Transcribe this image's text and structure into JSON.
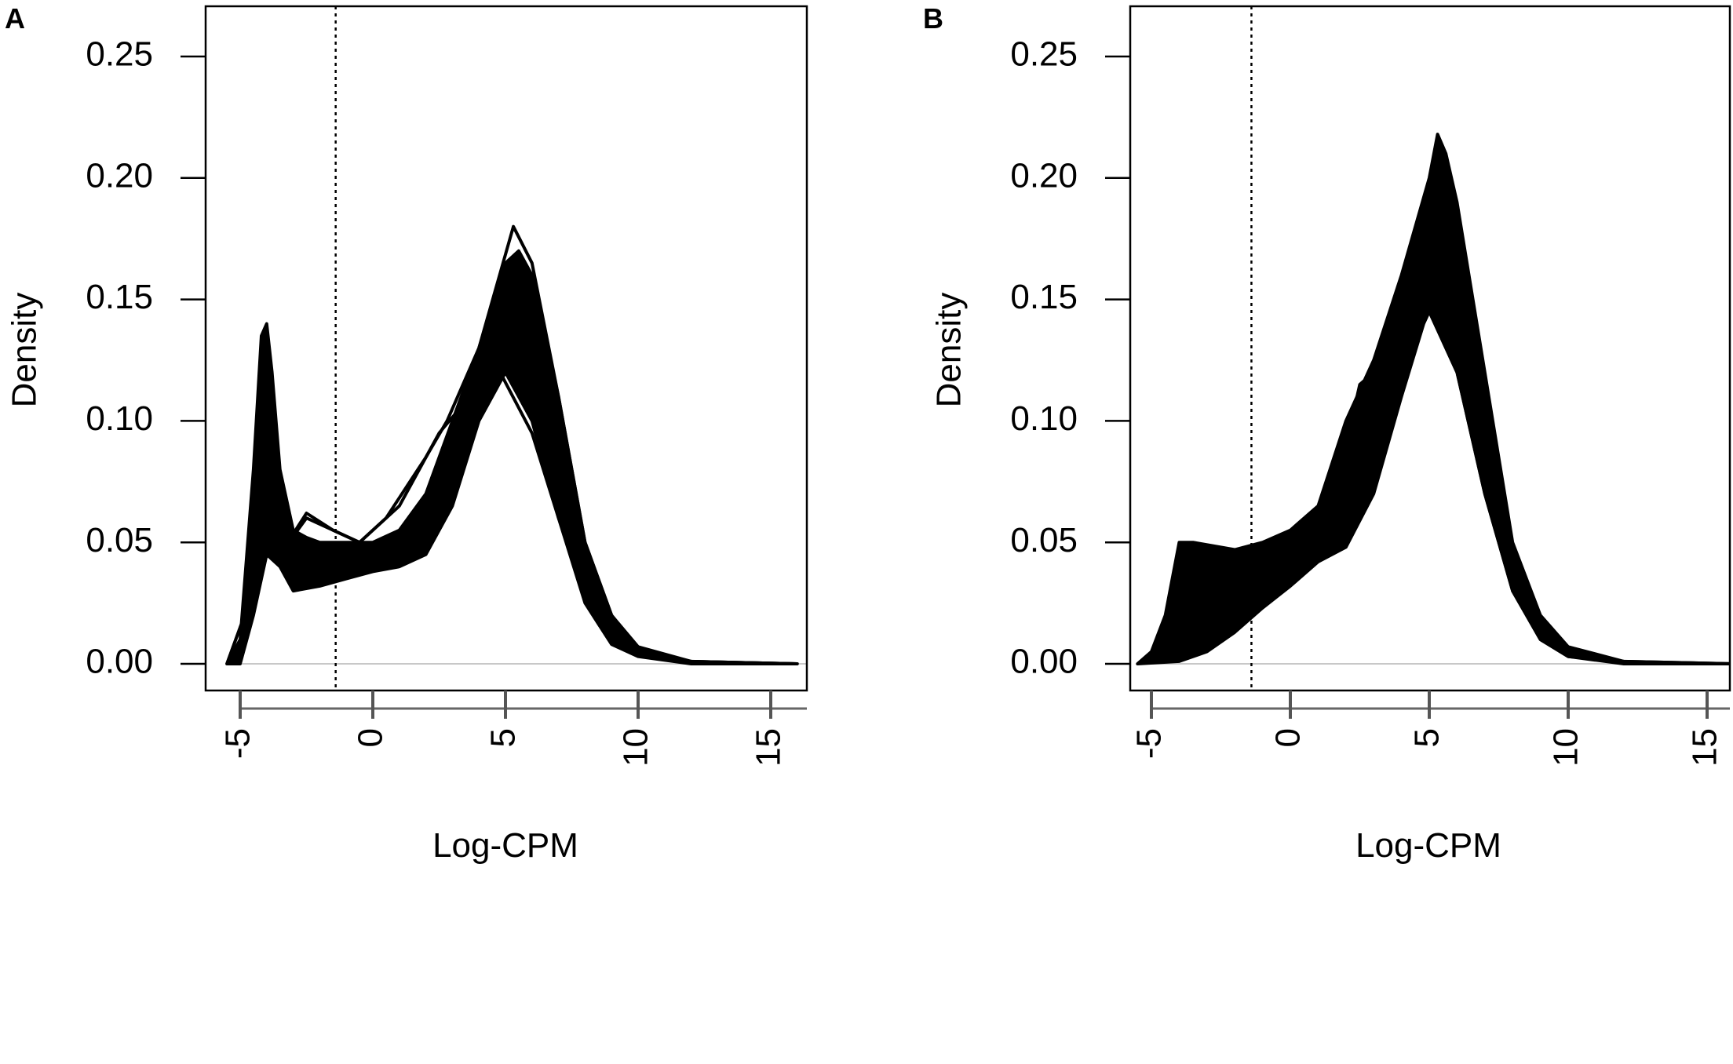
{
  "chart_data": [
    {
      "panel_label": "A",
      "type": "line",
      "xlabel": "Log-CPM",
      "ylabel": "Density",
      "xlim": [
        -6.3,
        16.4
      ],
      "ylim": [
        -0.0125,
        0.271
      ],
      "xticks": [
        -5,
        0,
        5,
        10,
        15
      ],
      "xtick_labels": [
        "-5",
        "0",
        "5",
        "10",
        "15"
      ],
      "yticks": [
        0,
        0.05,
        0.1,
        0.15,
        0.2,
        0.25
      ],
      "ytick_labels": [
        "0.00",
        "0.05",
        "0.10",
        "0.15",
        "0.20",
        "0.25"
      ],
      "cutoff_line_x": -1.4,
      "grid": false,
      "band": {
        "upper": {
          "x": [
            -5.5,
            -5,
            -4.5,
            -4.2,
            -4,
            -3.8,
            -3.5,
            -3,
            -2.5,
            -2,
            -1,
            0,
            1,
            2,
            3,
            4,
            5,
            5.5,
            6,
            7,
            8,
            9,
            10,
            12,
            16
          ],
          "y": [
            0,
            0.01,
            0.08,
            0.135,
            0.14,
            0.12,
            0.08,
            0.055,
            0.052,
            0.05,
            0.05,
            0.05,
            0.055,
            0.07,
            0.1,
            0.13,
            0.165,
            0.17,
            0.16,
            0.11,
            0.05,
            0.02,
            0.007,
            0.001,
            0
          ]
        },
        "lower": {
          "x": [
            -5.5,
            -5,
            -4.5,
            -4,
            -3.5,
            -3,
            -2,
            -1,
            0,
            1,
            2,
            3,
            4,
            5,
            6,
            7,
            8,
            9,
            10,
            12,
            16
          ],
          "y": [
            0,
            0,
            0.02,
            0.045,
            0.04,
            0.03,
            0.032,
            0.035,
            0.038,
            0.04,
            0.045,
            0.065,
            0.1,
            0.12,
            0.1,
            0.06,
            0.025,
            0.008,
            0.003,
            0,
            0
          ]
        }
      },
      "series": [
        {
          "x": [
            -5.5,
            -4.5,
            -4,
            -3.5,
            -2.5,
            -1.5,
            -0.5,
            0.5,
            2,
            2.8,
            4,
            5.3,
            6,
            7,
            8,
            9,
            10,
            12,
            16
          ],
          "y": [
            0,
            0.03,
            0.05,
            0.045,
            0.06,
            0.055,
            0.05,
            0.06,
            0.085,
            0.1,
            0.13,
            0.18,
            0.165,
            0.11,
            0.05,
            0.02,
            0.006,
            0.001,
            0
          ]
        },
        {
          "x": [
            -5.5,
            -4.5,
            -4,
            -3.5,
            -2.5,
            -1.5,
            -0.5,
            1,
            2.5,
            3.5,
            4.8,
            6,
            7,
            8,
            9,
            10,
            12,
            16
          ],
          "y": [
            0,
            0.03,
            0.053,
            0.045,
            0.062,
            0.055,
            0.05,
            0.065,
            0.095,
            0.108,
            0.12,
            0.095,
            0.06,
            0.03,
            0.012,
            0.004,
            0.001,
            0
          ]
        }
      ]
    },
    {
      "panel_label": "B",
      "type": "line",
      "xlabel": "Log-CPM",
      "ylabel": "Density",
      "xlim": [
        -5.7,
        15.9
      ],
      "ylim": [
        -0.0125,
        0.271
      ],
      "xticks": [
        -5,
        0,
        5,
        10,
        15
      ],
      "xtick_labels": [
        "-5",
        "0",
        "5",
        "10",
        "15"
      ],
      "yticks": [
        0,
        0.05,
        0.1,
        0.15,
        0.2,
        0.25
      ],
      "ytick_labels": [
        "0.00",
        "0.05",
        "0.10",
        "0.15",
        "0.20",
        "0.25"
      ],
      "cutoff_line_x": -1.4,
      "grid": false,
      "band": {
        "upper": {
          "x": [
            -5.5,
            -5,
            -4.5,
            -4,
            -3.5,
            -2,
            -1,
            0,
            1,
            2,
            3,
            4,
            5,
            5.3,
            5.6,
            6,
            7,
            8,
            9,
            10,
            12,
            16
          ],
          "y": [
            0,
            0.005,
            0.02,
            0.05,
            0.05,
            0.047,
            0.05,
            0.055,
            0.065,
            0.1,
            0.125,
            0.16,
            0.2,
            0.218,
            0.21,
            0.19,
            0.12,
            0.05,
            0.02,
            0.007,
            0.001,
            0
          ]
        },
        "lower": {
          "x": [
            -5.5,
            -4,
            -3,
            -2,
            -1,
            0,
            1,
            2,
            3,
            4,
            4.8,
            5,
            6,
            7,
            8,
            9,
            10,
            12,
            16
          ],
          "y": [
            0,
            0.001,
            0.005,
            0.013,
            0.023,
            0.032,
            0.042,
            0.048,
            0.07,
            0.11,
            0.14,
            0.145,
            0.12,
            0.07,
            0.03,
            0.01,
            0.003,
            0,
            0
          ]
        }
      },
      "series": [
        {
          "x": [
            -5.5,
            -4,
            -2,
            -1,
            0,
            1,
            2,
            2.5,
            3,
            4,
            5,
            6,
            7,
            8,
            9,
            10,
            12,
            16
          ],
          "y": [
            0,
            0.01,
            0.02,
            0.025,
            0.035,
            0.055,
            0.09,
            0.115,
            0.12,
            0.13,
            0.145,
            0.12,
            0.07,
            0.03,
            0.01,
            0.003,
            0.001,
            0
          ]
        }
      ]
    }
  ]
}
